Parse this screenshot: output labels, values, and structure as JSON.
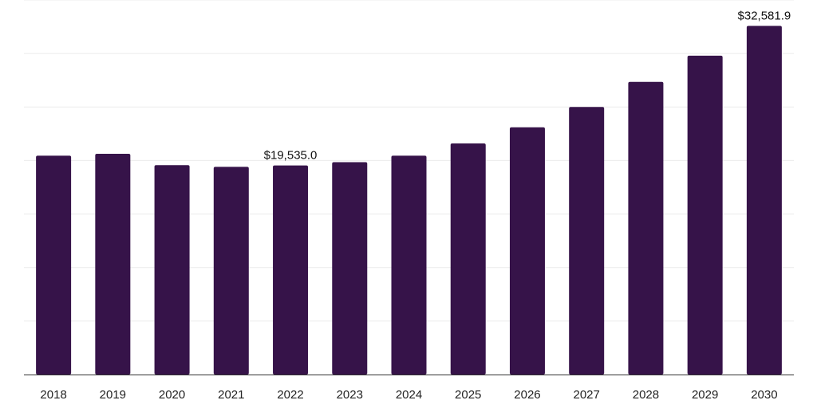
{
  "chart_data": {
    "type": "bar",
    "categories": [
      "2018",
      "2019",
      "2020",
      "2021",
      "2022",
      "2023",
      "2024",
      "2025",
      "2026",
      "2027",
      "2028",
      "2029",
      "2030"
    ],
    "values": [
      20450,
      20630,
      19570,
      19410,
      19535.0,
      19850,
      20450,
      21600,
      23100,
      25000,
      27350,
      29800,
      32581.9
    ],
    "value_labels": [
      {
        "index": 4,
        "text": "$19,535.0"
      },
      {
        "index": 12,
        "text": "$32,581.9"
      }
    ],
    "ylim": [
      0,
      35000
    ],
    "grid": true,
    "title": "",
    "xlabel": "",
    "ylabel": "",
    "colors": {
      "bar": "#361349",
      "grid": "#ececec",
      "axis": "#333333"
    }
  }
}
